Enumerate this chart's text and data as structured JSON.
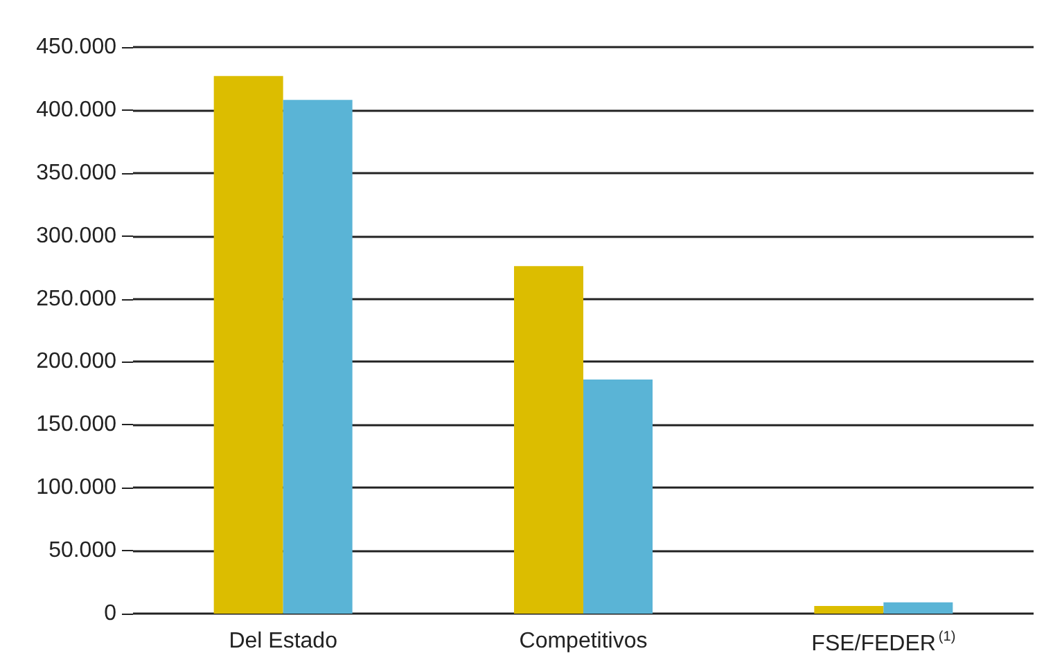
{
  "chart_data": {
    "type": "bar",
    "categories": [
      "Del Estado",
      "Competitivos",
      "FSE/FEDER$^{(1)}$"
    ],
    "series": [
      {
        "color": "#dcbd00",
        "values": [
          427000,
          276000,
          6000
        ]
      },
      {
        "color": "#5ab4d6",
        "values": [
          408000,
          186000,
          9000
        ]
      }
    ],
    "ylim": [
      0,
      450000
    ],
    "yticks": [
      {
        "value": 0,
        "label": "0"
      },
      {
        "value": 50000,
        "label": "50.000"
      },
      {
        "value": 100000,
        "label": "100.000"
      },
      {
        "value": 150000,
        "label": "150.000"
      },
      {
        "value": 200000,
        "label": "200.000"
      },
      {
        "value": 250000,
        "label": "250.000"
      },
      {
        "value": 300000,
        "label": "300.000"
      },
      {
        "value": 350000,
        "label": "350.000"
      },
      {
        "value": 400000,
        "label": "400.000"
      },
      {
        "value": 450000,
        "label": "450.000"
      }
    ],
    "grid": "y"
  }
}
